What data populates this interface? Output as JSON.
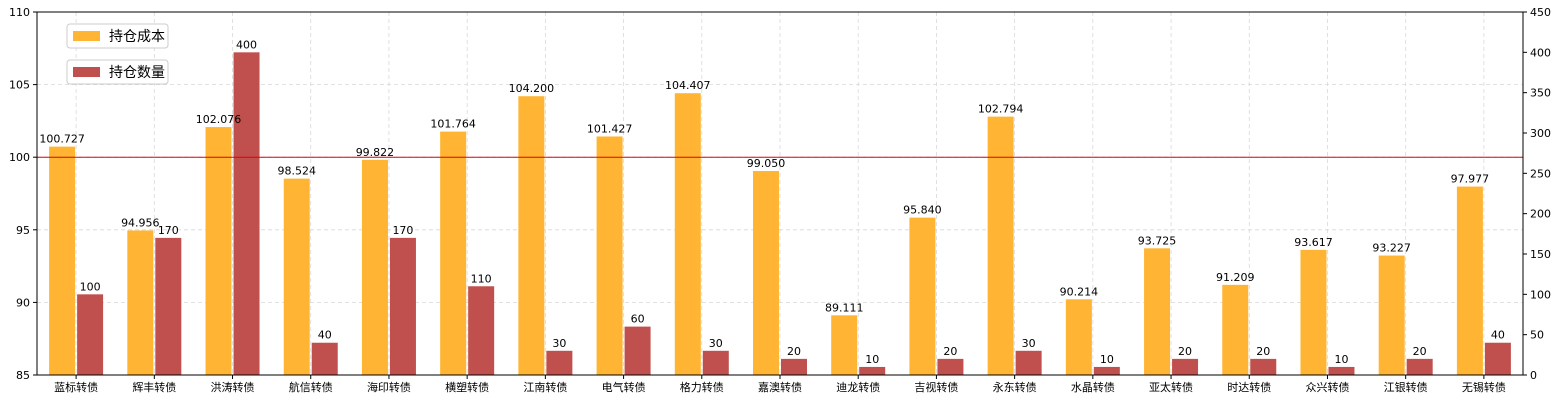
{
  "chart_data": {
    "type": "bar",
    "categories": [
      "蓝标转债",
      "辉丰转债",
      "洪涛转债",
      "航信转债",
      "海印转债",
      "横塑转债",
      "江南转债",
      "电气转债",
      "格力转债",
      "嘉澳转债",
      "迪龙转债",
      "吉视转债",
      "永东转债",
      "水晶转债",
      "亚太转债",
      "时达转债",
      "众兴转债",
      "江银转债",
      "无锡转债"
    ],
    "series": [
      {
        "name": "持仓成本",
        "axis": "left",
        "color": "#FFB533",
        "values": [
          100.727,
          94.956,
          102.076,
          98.524,
          99.822,
          101.764,
          104.2,
          101.427,
          104.407,
          99.05,
          89.111,
          95.84,
          102.794,
          90.214,
          93.725,
          91.209,
          93.617,
          93.227,
          97.977
        ],
        "labels": [
          "100.727",
          "94.956",
          "102.076",
          "98.524",
          "99.822",
          "101.764",
          "104.200",
          "101.427",
          "104.407",
          "99.050",
          "89.111",
          "95.840",
          "102.794",
          "90.214",
          "93.725",
          "91.209",
          "93.617",
          "93.227",
          "97.977"
        ]
      },
      {
        "name": "持仓数量",
        "axis": "right",
        "color": "#C0504D",
        "values": [
          100,
          170,
          400,
          40,
          170,
          110,
          30,
          60,
          30,
          20,
          10,
          20,
          30,
          10,
          20,
          20,
          10,
          20,
          40
        ],
        "labels": [
          "100",
          "170",
          "400",
          "40",
          "170",
          "110",
          "30",
          "60",
          "30",
          "20",
          "10",
          "20",
          "30",
          "10",
          "20",
          "20",
          "10",
          "20",
          "40"
        ]
      }
    ],
    "y_left": {
      "lim": [
        85,
        110
      ],
      "ticks": [
        "85",
        "90",
        "95",
        "100",
        "105",
        "110"
      ]
    },
    "y_right": {
      "lim": [
        0,
        450
      ],
      "ticks": [
        "0",
        "50",
        "100",
        "150",
        "200",
        "250",
        "300",
        "350",
        "400",
        "450"
      ]
    },
    "reference_line": {
      "value": 100,
      "axis": "left",
      "color": "#E00000"
    },
    "grid": true,
    "legend": "top-left",
    "title": "",
    "xlabel": "",
    "ylabel": ""
  }
}
